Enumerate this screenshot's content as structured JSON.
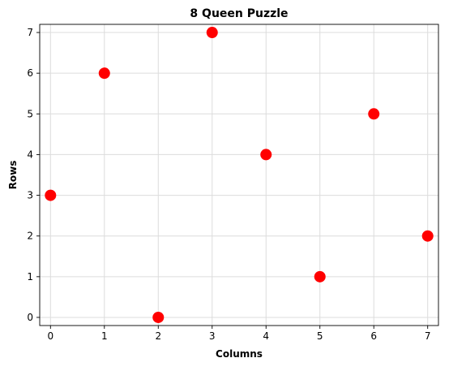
{
  "chart_data": {
    "type": "scatter",
    "title": "8 Queen Puzzle",
    "xlabel": "Columns",
    "ylabel": "Rows",
    "xlim": [
      -0.2,
      7.2
    ],
    "ylim": [
      -0.2,
      7.2
    ],
    "xticks": [
      0,
      1,
      2,
      3,
      4,
      5,
      6,
      7
    ],
    "yticks": [
      0,
      1,
      2,
      3,
      4,
      5,
      6,
      7
    ],
    "grid": true,
    "marker_color": "#ff0000",
    "series": [
      {
        "points": [
          {
            "x": 0,
            "y": 3
          },
          {
            "x": 1,
            "y": 6
          },
          {
            "x": 2,
            "y": 0
          },
          {
            "x": 3,
            "y": 7
          },
          {
            "x": 4,
            "y": 4
          },
          {
            "x": 5,
            "y": 1
          },
          {
            "x": 6,
            "y": 5
          },
          {
            "x": 7,
            "y": 2
          }
        ]
      }
    ]
  }
}
